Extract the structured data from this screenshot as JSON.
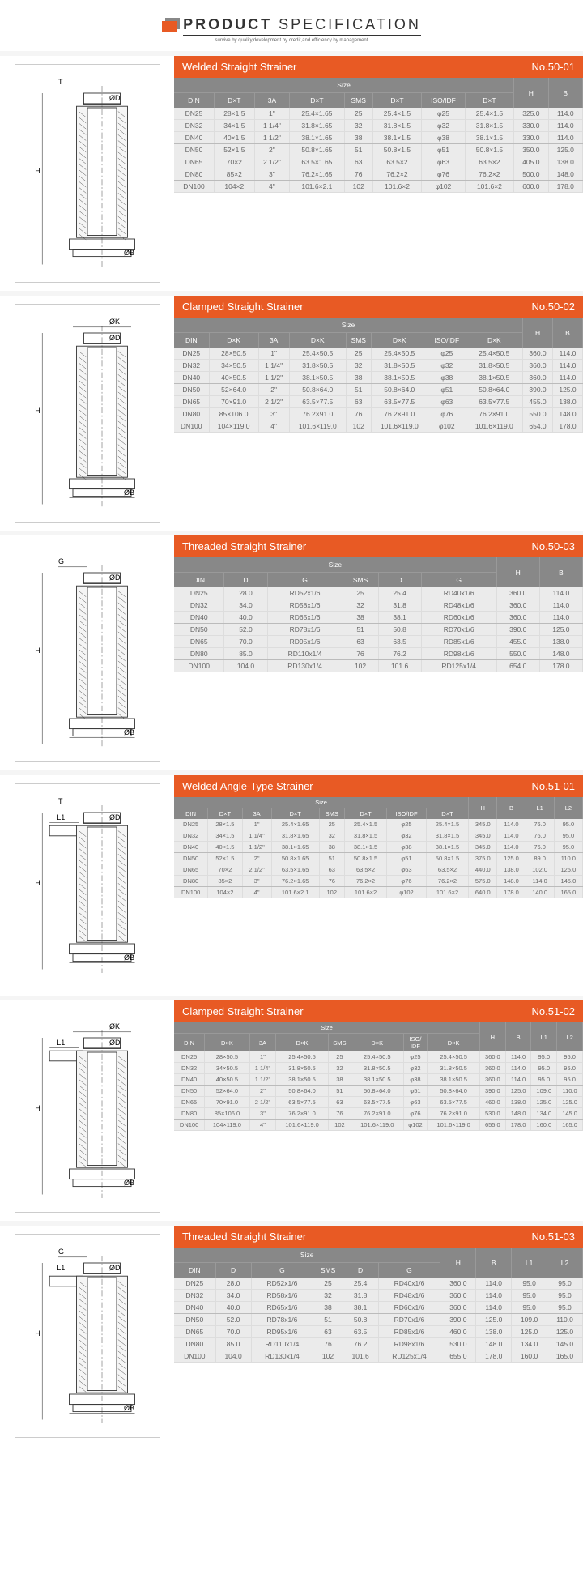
{
  "header": {
    "title_bold": "PRODUCT",
    "title_light": "SPECIFICATION",
    "subtitle": "survive by quality,development by credit,and efficiency by management"
  },
  "sections": [
    {
      "title": "Welded Straight Strainer",
      "number": "No.50-01",
      "dim_label": "D×T",
      "extra_cols": [
        "H",
        "B"
      ],
      "columns": [
        "DIN",
        "D×T",
        "3A",
        "D×T",
        "SMS",
        "D×T",
        "ISO/IDF",
        "D×T",
        "H",
        "B"
      ],
      "groups": [
        [
          [
            "DN25",
            "28×1.5",
            "1\"",
            "25.4×1.65",
            "25",
            "25.4×1.5",
            "φ25",
            "25.4×1.5",
            "325.0",
            "114.0"
          ],
          [
            "DN32",
            "34×1.5",
            "1 1/4\"",
            "31.8×1.65",
            "32",
            "31.8×1.5",
            "φ32",
            "31.8×1.5",
            "330.0",
            "114.0"
          ],
          [
            "DN40",
            "40×1.5",
            "1 1/2\"",
            "38.1×1.65",
            "38",
            "38.1×1.5",
            "φ38",
            "38.1×1.5",
            "330.0",
            "114.0"
          ]
        ],
        [
          [
            "DN50",
            "52×1.5",
            "2\"",
            "50.8×1.65",
            "51",
            "50.8×1.5",
            "φ51",
            "50.8×1.5",
            "350.0",
            "125.0"
          ],
          [
            "DN65",
            "70×2",
            "2 1/2\"",
            "63.5×1.65",
            "63",
            "63.5×2",
            "φ63",
            "63.5×2",
            "405.0",
            "138.0"
          ],
          [
            "DN80",
            "85×2",
            "3\"",
            "76.2×1.65",
            "76",
            "76.2×2",
            "φ76",
            "76.2×2",
            "500.0",
            "148.0"
          ]
        ],
        [
          [
            "DN100",
            "104×2",
            "4\"",
            "101.6×2.1",
            "102",
            "101.6×2",
            "φ102",
            "101.6×2",
            "600.0",
            "178.0"
          ]
        ]
      ]
    },
    {
      "title": "Clamped Straight Strainer",
      "number": "No.50-02",
      "dim_label": "D×K",
      "extra_cols": [
        "H",
        "B"
      ],
      "columns": [
        "DIN",
        "D×K",
        "3A",
        "D×K",
        "SMS",
        "D×K",
        "ISO/IDF",
        "D×K",
        "H",
        "B"
      ],
      "groups": [
        [
          [
            "DN25",
            "28×50.5",
            "1\"",
            "25.4×50.5",
            "25",
            "25.4×50.5",
            "φ25",
            "25.4×50.5",
            "360.0",
            "114.0"
          ],
          [
            "DN32",
            "34×50.5",
            "1 1/4\"",
            "31.8×50.5",
            "32",
            "31.8×50.5",
            "φ32",
            "31.8×50.5",
            "360.0",
            "114.0"
          ],
          [
            "DN40",
            "40×50.5",
            "1 1/2\"",
            "38.1×50.5",
            "38",
            "38.1×50.5",
            "φ38",
            "38.1×50.5",
            "360.0",
            "114.0"
          ]
        ],
        [
          [
            "DN50",
            "52×64.0",
            "2\"",
            "50.8×64.0",
            "51",
            "50.8×64.0",
            "φ51",
            "50.8×64.0",
            "390.0",
            "125.0"
          ],
          [
            "DN65",
            "70×91.0",
            "2 1/2\"",
            "63.5×77.5",
            "63",
            "63.5×77.5",
            "φ63",
            "63.5×77.5",
            "455.0",
            "138.0"
          ],
          [
            "DN80",
            "85×106.0",
            "3\"",
            "76.2×91.0",
            "76",
            "76.2×91.0",
            "φ76",
            "76.2×91.0",
            "550.0",
            "148.0"
          ]
        ],
        [
          [
            "DN100",
            "104×119.0",
            "4\"",
            "101.6×119.0",
            "102",
            "101.6×119.0",
            "φ102",
            "101.6×119.0",
            "654.0",
            "178.0"
          ]
        ]
      ]
    },
    {
      "title": "Threaded Straight Strainer",
      "number": "No.50-03",
      "dim_label": "",
      "extra_cols": [
        "H",
        "B"
      ],
      "columns": [
        "DIN",
        "D",
        "G",
        "SMS",
        "D",
        "G",
        "H",
        "B"
      ],
      "groups": [
        [
          [
            "DN25",
            "28.0",
            "RD52x1/6",
            "25",
            "25.4",
            "RD40x1/6",
            "360.0",
            "114.0"
          ],
          [
            "DN32",
            "34.0",
            "RD58x1/6",
            "32",
            "31.8",
            "RD48x1/6",
            "360.0",
            "114.0"
          ],
          [
            "DN40",
            "40.0",
            "RD65x1/6",
            "38",
            "38.1",
            "RD60x1/6",
            "360.0",
            "114.0"
          ]
        ],
        [
          [
            "DN50",
            "52.0",
            "RD78x1/6",
            "51",
            "50.8",
            "RD70x1/6",
            "390.0",
            "125.0"
          ],
          [
            "DN65",
            "70.0",
            "RD95x1/6",
            "63",
            "63.5",
            "RD85x1/6",
            "455.0",
            "138.0"
          ],
          [
            "DN80",
            "85.0",
            "RD110x1/4",
            "76",
            "76.2",
            "RD98x1/6",
            "550.0",
            "148.0"
          ]
        ],
        [
          [
            "DN100",
            "104.0",
            "RD130x1/4",
            "102",
            "101.6",
            "RD125x1/4",
            "654.0",
            "178.0"
          ]
        ]
      ]
    },
    {
      "title": "Welded Angle-Type Strainer",
      "number": "No.51-01",
      "dim_label": "D×T",
      "extra_cols": [
        "H",
        "B",
        "L1",
        "L2"
      ],
      "columns": [
        "DIN",
        "D×T",
        "3A",
        "D×T",
        "SMS",
        "D×T",
        "ISO/IDF",
        "D×T",
        "H",
        "B",
        "L1",
        "L2"
      ],
      "narrow": true,
      "groups": [
        [
          [
            "DN25",
            "28×1.5",
            "1\"",
            "25.4×1.65",
            "25",
            "25.4×1.5",
            "φ25",
            "25.4×1.5",
            "345.0",
            "114.0",
            "76.0",
            "95.0"
          ],
          [
            "DN32",
            "34×1.5",
            "1 1/4\"",
            "31.8×1.65",
            "32",
            "31.8×1.5",
            "φ32",
            "31.8×1.5",
            "345.0",
            "114.0",
            "76.0",
            "95.0"
          ],
          [
            "DN40",
            "40×1.5",
            "1 1/2\"",
            "38.1×1.65",
            "38",
            "38.1×1.5",
            "φ38",
            "38.1×1.5",
            "345.0",
            "114.0",
            "76.0",
            "95.0"
          ]
        ],
        [
          [
            "DN50",
            "52×1.5",
            "2\"",
            "50.8×1.65",
            "51",
            "50.8×1.5",
            "φ51",
            "50.8×1.5",
            "375.0",
            "125.0",
            "89.0",
            "110.0"
          ],
          [
            "DN65",
            "70×2",
            "2 1/2\"",
            "63.5×1.65",
            "63",
            "63.5×2",
            "φ63",
            "63.5×2",
            "440.0",
            "138.0",
            "102.0",
            "125.0"
          ],
          [
            "DN80",
            "85×2",
            "3\"",
            "76.2×1.65",
            "76",
            "76.2×2",
            "φ76",
            "76.2×2",
            "575.0",
            "148.0",
            "114.0",
            "145.0"
          ]
        ],
        [
          [
            "DN100",
            "104×2",
            "4\"",
            "101.6×2.1",
            "102",
            "101.6×2",
            "φ102",
            "101.6×2",
            "640.0",
            "178.0",
            "140.0",
            "165.0"
          ]
        ]
      ]
    },
    {
      "title": "Clamped Straight Strainer",
      "number": "No.51-02",
      "dim_label": "D×K",
      "extra_cols": [
        "H",
        "B",
        "L1",
        "L2"
      ],
      "columns": [
        "DIN",
        "D×K",
        "3A",
        "D×K",
        "SMS",
        "D×K",
        "ISO/IDF",
        "D×K",
        "H",
        "B",
        "L1",
        "L2"
      ],
      "iso_short": true,
      "narrow": true,
      "groups": [
        [
          [
            "DN25",
            "28×50.5",
            "1\"",
            "25.4×50.5",
            "25",
            "25.4×50.5",
            "φ25",
            "25.4×50.5",
            "360.0",
            "114.0",
            "95.0",
            "95.0"
          ],
          [
            "DN32",
            "34×50.5",
            "1 1/4\"",
            "31.8×50.5",
            "32",
            "31.8×50.5",
            "φ32",
            "31.8×50.5",
            "360.0",
            "114.0",
            "95.0",
            "95.0"
          ],
          [
            "DN40",
            "40×50.5",
            "1 1/2\"",
            "38.1×50.5",
            "38",
            "38.1×50.5",
            "φ38",
            "38.1×50.5",
            "360.0",
            "114.0",
            "95.0",
            "95.0"
          ]
        ],
        [
          [
            "DN50",
            "52×64.0",
            "2\"",
            "50.8×64.0",
            "51",
            "50.8×64.0",
            "φ51",
            "50.8×64.0",
            "390.0",
            "125.0",
            "109.0",
            "110.0"
          ],
          [
            "DN65",
            "70×91.0",
            "2 1/2\"",
            "63.5×77.5",
            "63",
            "63.5×77.5",
            "φ63",
            "63.5×77.5",
            "460.0",
            "138.0",
            "125.0",
            "125.0"
          ],
          [
            "DN80",
            "85×106.0",
            "3\"",
            "76.2×91.0",
            "76",
            "76.2×91.0",
            "φ76",
            "76.2×91.0",
            "530.0",
            "148.0",
            "134.0",
            "145.0"
          ]
        ],
        [
          [
            "DN100",
            "104×119.0",
            "4\"",
            "101.6×119.0",
            "102",
            "101.6×119.0",
            "φ102",
            "101.6×119.0",
            "655.0",
            "178.0",
            "160.0",
            "165.0"
          ]
        ]
      ]
    },
    {
      "title": "Threaded Straight Strainer",
      "number": "No.51-03",
      "dim_label": "",
      "extra_cols": [
        "H",
        "B",
        "L1",
        "L2"
      ],
      "columns": [
        "DIN",
        "D",
        "G",
        "SMS",
        "D",
        "G",
        "H",
        "B",
        "L1",
        "L2"
      ],
      "groups": [
        [
          [
            "DN25",
            "28.0",
            "RD52x1/6",
            "25",
            "25.4",
            "RD40x1/6",
            "360.0",
            "114.0",
            "95.0",
            "95.0"
          ],
          [
            "DN32",
            "34.0",
            "RD58x1/6",
            "32",
            "31.8",
            "RD48x1/6",
            "360.0",
            "114.0",
            "95.0",
            "95.0"
          ],
          [
            "DN40",
            "40.0",
            "RD65x1/6",
            "38",
            "38.1",
            "RD60x1/6",
            "360.0",
            "114.0",
            "95.0",
            "95.0"
          ]
        ],
        [
          [
            "DN50",
            "52.0",
            "RD78x1/6",
            "51",
            "50.8",
            "RD70x1/6",
            "390.0",
            "125.0",
            "109.0",
            "110.0"
          ],
          [
            "DN65",
            "70.0",
            "RD95x1/6",
            "63",
            "63.5",
            "RD85x1/6",
            "460.0",
            "138.0",
            "125.0",
            "125.0"
          ],
          [
            "DN80",
            "85.0",
            "RD110x1/4",
            "76",
            "76.2",
            "RD98x1/6",
            "530.0",
            "148.0",
            "134.0",
            "145.0"
          ]
        ],
        [
          [
            "DN100",
            "104.0",
            "RD130x1/4",
            "102",
            "101.6",
            "RD125x1/4",
            "655.0",
            "178.0",
            "160.0",
            "165.0"
          ]
        ]
      ]
    }
  ],
  "diagram_labels": {
    "d": "ØD",
    "b": "ØB",
    "k": "ØK",
    "h": "H",
    "t": "T",
    "g": "G",
    "l1": "L1"
  },
  "colors": {
    "accent": "#e85a24",
    "header_gray": "#888888",
    "table_bg": "#ebebeb"
  }
}
